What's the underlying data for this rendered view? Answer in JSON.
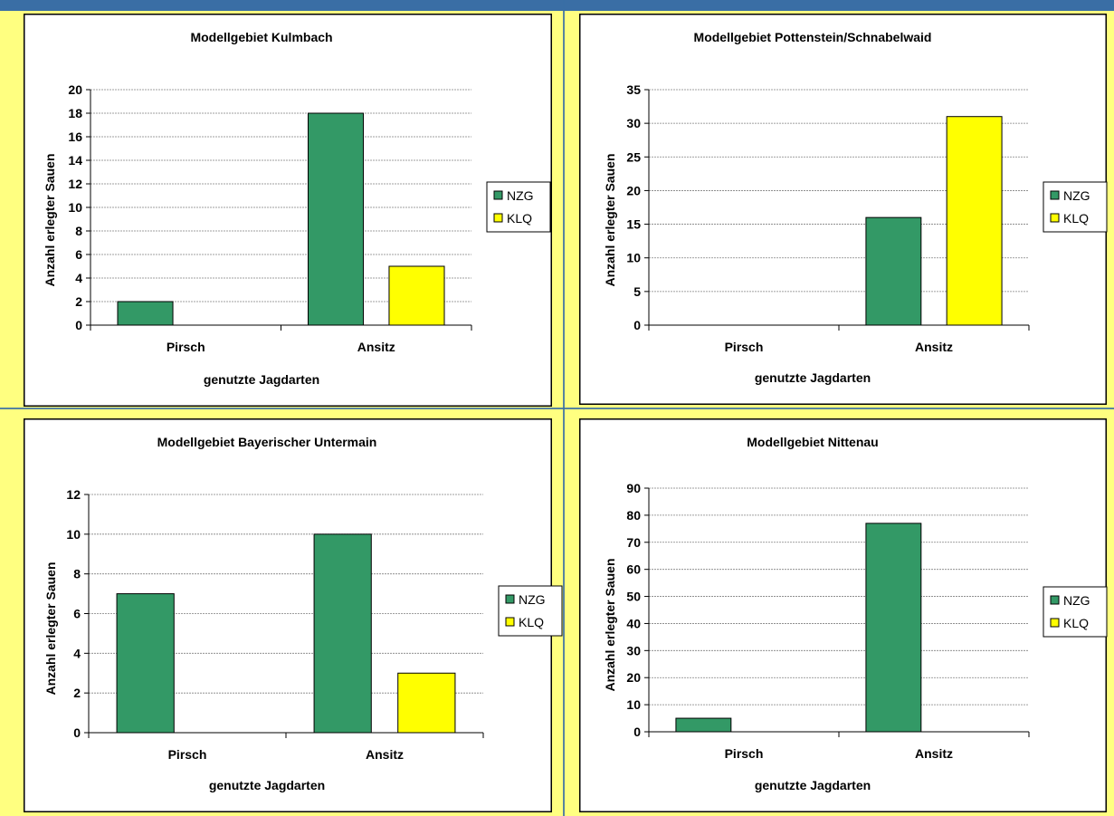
{
  "colors": {
    "NZG": "#339966",
    "KLQ": "#ffff00"
  },
  "chart_data": [
    {
      "type": "bar",
      "title": "Modellgebiet Kulmbach",
      "xlabel": "genutzte Jagdarten",
      "ylabel": "Anzahl erlegter Sauen",
      "categories": [
        "Pirsch",
        "Ansitz"
      ],
      "series": [
        {
          "name": "NZG",
          "values": [
            2,
            18
          ]
        },
        {
          "name": "KLQ",
          "values": [
            0,
            5
          ]
        }
      ],
      "ylim": [
        0,
        20
      ],
      "yticks": [
        "0",
        "2",
        "4",
        "6",
        "8",
        "10",
        "12",
        "14",
        "16",
        "18",
        "20"
      ],
      "grid": true,
      "legend": "right"
    },
    {
      "type": "bar",
      "title": "Modellgebiet Pottenstein/Schnabelwaid",
      "xlabel": "genutzte Jagdarten",
      "ylabel": "Anzahl erlegter Sauen",
      "categories": [
        "Pirsch",
        "Ansitz"
      ],
      "series": [
        {
          "name": "NZG",
          "values": [
            0,
            16
          ]
        },
        {
          "name": "KLQ",
          "values": [
            0,
            31
          ]
        }
      ],
      "ylim": [
        0,
        35
      ],
      "yticks": [
        "0",
        "5",
        "10",
        "15",
        "20",
        "25",
        "30",
        "35"
      ],
      "grid": true,
      "legend": "right"
    },
    {
      "type": "bar",
      "title": "Modellgebiet Bayerischer Untermain",
      "xlabel": "genutzte Jagdarten",
      "ylabel": "Anzahl erlegter Sauen",
      "categories": [
        "Pirsch",
        "Ansitz"
      ],
      "series": [
        {
          "name": "NZG",
          "values": [
            7,
            10
          ]
        },
        {
          "name": "KLQ",
          "values": [
            0,
            3
          ]
        }
      ],
      "ylim": [
        0,
        12
      ],
      "yticks": [
        "0",
        "2",
        "4",
        "6",
        "8",
        "10",
        "12"
      ],
      "grid": true,
      "legend": "right"
    },
    {
      "type": "bar",
      "title": "Modellgebiet Nittenau",
      "xlabel": "genutzte Jagdarten",
      "ylabel": "Anzahl erlegter Sauen",
      "categories": [
        "Pirsch",
        "Ansitz"
      ],
      "series": [
        {
          "name": "NZG",
          "values": [
            5,
            77
          ]
        },
        {
          "name": "KLQ",
          "values": [
            0,
            0
          ]
        }
      ],
      "ylim": [
        0,
        90
      ],
      "yticks": [
        "0",
        "10",
        "20",
        "30",
        "40",
        "50",
        "60",
        "70",
        "80",
        "90"
      ],
      "grid": true,
      "legend": "right"
    }
  ]
}
